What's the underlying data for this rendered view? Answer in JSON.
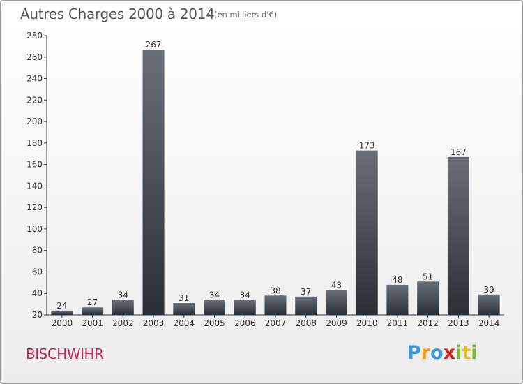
{
  "header": {
    "title": "Autres Charges 2000 à 2014",
    "subtitle": "(en milliers d'€)"
  },
  "footer": {
    "city": "BISCHWIHR",
    "logo": "Proxiti"
  },
  "colors": {
    "bar_top": "#6a6f77",
    "bar_bottom": "#2a2f36",
    "city_text": "#c8245a",
    "logo_letters": [
      "#3a9bd8",
      "#f0a020",
      "#3a9bd8",
      "#d82020",
      "#7ab830",
      "#e0c020",
      "#7ab830"
    ]
  },
  "chart_data": {
    "type": "bar",
    "categories": [
      "2000",
      "2001",
      "2002",
      "2003",
      "2004",
      "2005",
      "2006",
      "2007",
      "2008",
      "2009",
      "2010",
      "2011",
      "2012",
      "2013",
      "2014"
    ],
    "values": [
      24,
      27,
      34,
      267,
      31,
      34,
      34,
      38,
      37,
      43,
      173,
      48,
      51,
      167,
      39
    ],
    "ylim": [
      20,
      280
    ],
    "yticks": [
      20,
      40,
      60,
      80,
      100,
      120,
      140,
      160,
      180,
      200,
      220,
      240,
      260,
      280
    ],
    "xlabel": "",
    "ylabel": "",
    "grid": false
  }
}
